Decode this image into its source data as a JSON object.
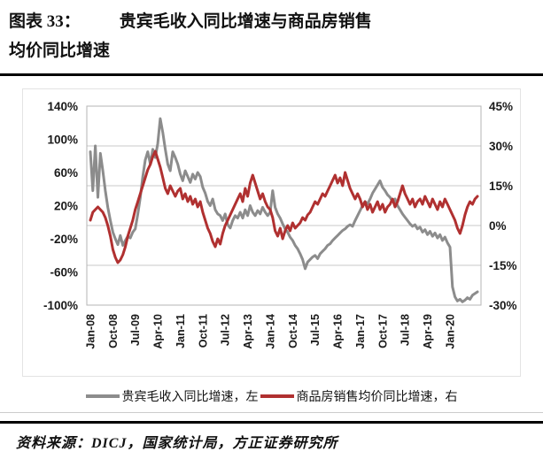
{
  "title": {
    "prefix": "图表 33：",
    "line1_text": "贵宾毛收入同比增速与商品房销售",
    "line2_text": "均价同比增速"
  },
  "source": {
    "text": "资料来源：DICJ，国家统计局，方正证券研究所"
  },
  "chart_data": {
    "type": "line",
    "unit": "%",
    "grid": "horizontal-only",
    "legend_position": "bottom-center",
    "x_start": "Jan-08",
    "x_frequency": "monthly",
    "x_tick_every_n_months": 9,
    "x_tick_labels": [
      "Jan-08",
      "Oct-08",
      "Jul-09",
      "Apr-10",
      "Jan-11",
      "Oct-11",
      "Jul-12",
      "Apr-13",
      "Jan-14",
      "Oct-14",
      "Jul-15",
      "Apr-16",
      "Jan-17",
      "Oct-17",
      "Jul-18",
      "Apr-19",
      "Jan-20"
    ],
    "axes": {
      "left": {
        "min": -100,
        "max": 140,
        "ticks": [
          "140%",
          "100%",
          "60%",
          "20%",
          "-20%",
          "-60%",
          "-100%"
        ],
        "tick_values": [
          140,
          100,
          60,
          20,
          -20,
          -60,
          -100
        ]
      },
      "right": {
        "min": -30,
        "max": 45,
        "ticks": [
          "45%",
          "30%",
          "15%",
          "0%",
          "-15%",
          "-30%"
        ],
        "tick_values": [
          45,
          30,
          15,
          0,
          -15,
          -30
        ]
      }
    },
    "colors": {
      "gray_series": "#8C8C8C",
      "red_series": "#B03030",
      "gridline": "#c9c9c9",
      "plot_border": "#b5b5b5",
      "tick_text": "#1a1a1a"
    },
    "series": [
      {
        "name": "贵宾毛收入同比增速，左",
        "axis": "left",
        "color": "#8C8C8C",
        "values": [
          85,
          38,
          92,
          30,
          83,
          62,
          38,
          18,
          2,
          -12,
          -20,
          -27,
          -16,
          -28,
          -22,
          -17,
          -19,
          -12,
          -8,
          10,
          30,
          55,
          75,
          85,
          70,
          88,
          78,
          95,
          125,
          108,
          88,
          70,
          62,
          85,
          78,
          70,
          58,
          50,
          62,
          55,
          48,
          58,
          52,
          60,
          55,
          42,
          35,
          25,
          20,
          28,
          15,
          10,
          8,
          2,
          10,
          -3,
          -7,
          2,
          8,
          5,
          12,
          5,
          15,
          8,
          20,
          12,
          8,
          14,
          10,
          18,
          12,
          8,
          12,
          38,
          18,
          10,
          5,
          -2,
          -8,
          -12,
          -18,
          -22,
          -28,
          -32,
          -38,
          -45,
          -56,
          -48,
          -45,
          -42,
          -40,
          -44,
          -38,
          -35,
          -32,
          -28,
          -26,
          -22,
          -19,
          -16,
          -13,
          -10,
          -8,
          -5,
          -3,
          -5,
          2,
          8,
          14,
          20,
          25,
          22,
          28,
          35,
          40,
          45,
          50,
          42,
          38,
          33,
          30,
          25,
          28,
          20,
          15,
          10,
          6,
          2,
          -2,
          -5,
          -3,
          -8,
          -6,
          -12,
          -9,
          -15,
          -11,
          -17,
          -13,
          -19,
          -15,
          -22,
          -18,
          -25,
          -30,
          -78,
          -90,
          -95,
          -93,
          -96,
          -94,
          -91,
          -93,
          -88,
          -86,
          -84
        ]
      },
      {
        "name": "商品房销售均价同比增速，右",
        "axis": "right",
        "color": "#B03030",
        "values": [
          2,
          5,
          6,
          7,
          6,
          5,
          3,
          0,
          -4,
          -9,
          -12,
          -14,
          -13,
          -11,
          -8,
          -4,
          -1,
          2,
          6,
          9,
          12,
          15,
          18,
          21,
          23,
          26,
          28,
          25,
          22,
          18,
          14,
          12,
          15,
          13,
          11,
          13,
          14,
          10,
          12,
          9,
          11,
          8,
          10,
          7,
          9,
          5,
          2,
          -1,
          -3,
          -6,
          -8,
          -5,
          -7,
          -3,
          0,
          2,
          4,
          6,
          8,
          10,
          12,
          9,
          14,
          11,
          16,
          19,
          16,
          13,
          10,
          12,
          9,
          7,
          6,
          3,
          -2,
          -4,
          -1,
          -5,
          -2,
          0,
          -2,
          1,
          -1,
          0,
          1,
          3,
          2,
          4,
          5,
          7,
          9,
          8,
          10,
          12,
          11,
          13,
          15,
          17,
          19,
          16,
          18,
          15,
          20,
          17,
          14,
          12,
          10,
          12,
          10,
          7,
          9,
          6,
          8,
          5,
          7,
          9,
          6,
          8,
          5,
          7,
          8,
          10,
          7,
          9,
          12,
          15,
          12,
          10,
          8,
          10,
          7,
          9,
          10,
          8,
          11,
          9,
          7,
          10,
          8,
          6,
          9,
          7,
          10,
          8,
          6,
          4,
          2,
          -1,
          -3,
          0,
          4,
          7,
          9,
          8,
          10,
          11
        ]
      }
    ]
  }
}
